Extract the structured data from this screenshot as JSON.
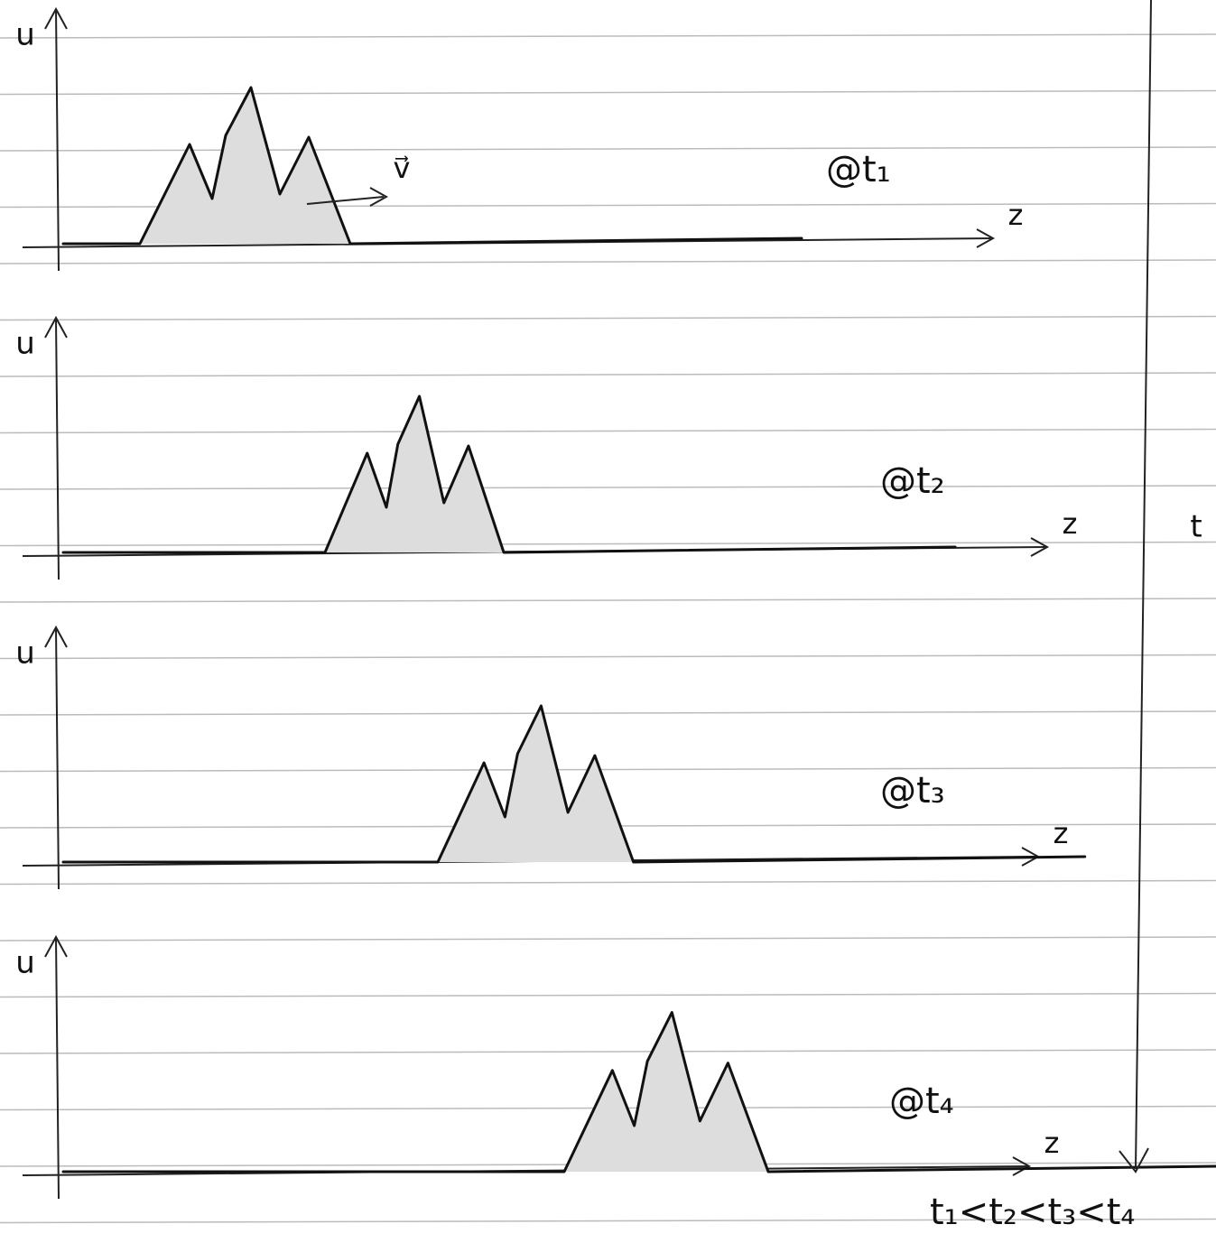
{
  "panels": [
    {
      "y_label": "u",
      "x_label": "z",
      "time_label": "@t₁"
    },
    {
      "y_label": "u",
      "x_label": "z",
      "time_label": "@t₂"
    },
    {
      "y_label": "u",
      "x_label": "z",
      "time_label": "@t₃"
    },
    {
      "y_label": "u",
      "x_label": "z",
      "time_label": "@t₄"
    }
  ],
  "velocity_label": "v⃗",
  "time_axis_label": "t",
  "time_order": "t₁<t₂<t₃<t₄"
}
